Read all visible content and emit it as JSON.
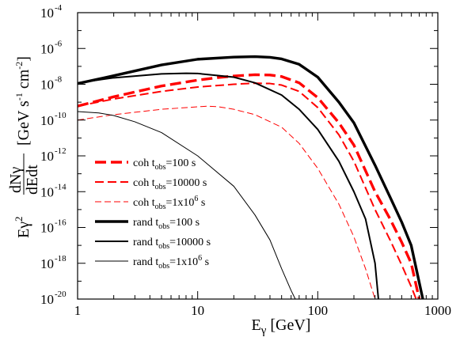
{
  "chart_data": {
    "type": "line",
    "title": "",
    "xlabel": "Eγ [GeV]",
    "ylabel": "Eγ2 dNγ/dEdt [GeV s-1 cm-2]",
    "xscale": "log",
    "yscale": "log",
    "xlim": [
      1,
      1000
    ],
    "ylim": [
      1e-20,
      0.0001
    ],
    "x_ticks": [
      1,
      10,
      100,
      1000
    ],
    "x_tick_labels": [
      "1",
      "10",
      "100",
      "1000"
    ],
    "y_ticks": [
      {
        "value": 1e-20,
        "base": "10",
        "exp": "-20"
      },
      {
        "value": 1e-18,
        "base": "10",
        "exp": "-18"
      },
      {
        "value": 1e-16,
        "base": "10",
        "exp": "-16"
      },
      {
        "value": 1e-14,
        "base": "10",
        "exp": "-14"
      },
      {
        "value": 1e-12,
        "base": "10",
        "exp": "-12"
      },
      {
        "value": 1e-10,
        "base": "10",
        "exp": "-10"
      },
      {
        "value": 1e-08,
        "base": "10",
        "exp": "-8"
      },
      {
        "value": 1e-06,
        "base": "10",
        "exp": "-6"
      },
      {
        "value": 0.0001,
        "base": "10",
        "exp": "-4"
      }
    ],
    "grid": false,
    "legend_position": "lower-left",
    "series": [
      {
        "name": "coh tobs=100 s",
        "legend": {
          "prefix": "coh  t",
          "sub": "obs",
          "mid": "=100 s",
          "sup": "",
          "suffix": ""
        },
        "color": "#ff0000",
        "style": "dashed",
        "width": "thick",
        "x": [
          1,
          2,
          5,
          10,
          15,
          20,
          30,
          40,
          50,
          70,
          100,
          150,
          200,
          300,
          400,
          500,
          600,
          700
        ],
        "y": [
          6e-10,
          2e-09,
          8e-09,
          1.7e-08,
          2.4e-08,
          2.9e-08,
          3.4e-08,
          3.3e-08,
          2.7e-08,
          1.2e-08,
          1.8e-09,
          7e-11,
          4e-12,
          1e-14,
          3e-16,
          1.5e-17,
          1e-18,
          1e-20
        ]
      },
      {
        "name": "coh tobs=10000 s",
        "legend": {
          "prefix": "coh  t",
          "sub": "obs",
          "mid": "=10000 s",
          "sup": "",
          "suffix": ""
        },
        "color": "#ff0000",
        "style": "dashed",
        "width": "medium",
        "x": [
          1,
          2,
          5,
          10,
          20,
          30,
          40,
          50,
          70,
          100,
          150,
          200,
          300,
          400,
          500,
          600,
          660
        ],
        "y": [
          6e-10,
          1.5e-09,
          4e-09,
          7e-09,
          1e-08,
          1.15e-08,
          1.1e-08,
          9e-09,
          4e-09,
          5e-10,
          1.5e-11,
          5e-13,
          1e-15,
          2e-17,
          8e-19,
          5e-20,
          1e-20
        ]
      },
      {
        "name": "coh tobs=1x10^6 s",
        "legend": {
          "prefix": "coh  t",
          "sub": "obs",
          "mid": "=1x10",
          "sup": "6",
          "suffix": " s"
        },
        "color": "#ff0000",
        "style": "dashed",
        "width": "thin",
        "x": [
          1,
          2,
          5,
          10,
          12,
          15,
          20,
          30,
          50,
          70,
          100,
          150,
          200,
          250,
          300,
          330
        ],
        "y": [
          1e-10,
          2e-10,
          4e-10,
          5.5e-10,
          6e-10,
          5.5e-10,
          4e-10,
          2e-10,
          4e-11,
          5e-12,
          2e-13,
          2e-15,
          3e-17,
          5e-19,
          1e-20,
          1e-20
        ]
      },
      {
        "name": "rand tobs=100 s",
        "legend": {
          "prefix": "rand t",
          "sub": "obs",
          "mid": "=100 s",
          "sup": "",
          "suffix": ""
        },
        "color": "#000000",
        "style": "solid",
        "width": "thick",
        "x": [
          1,
          2,
          5,
          10,
          20,
          30,
          40,
          50,
          70,
          100,
          150,
          200,
          300,
          400,
          500,
          600,
          750
        ],
        "y": [
          1.1e-08,
          3e-08,
          1.2e-07,
          2.5e-07,
          3.3e-07,
          3.5e-07,
          3.2e-07,
          2.6e-07,
          1.3e-07,
          2.5e-08,
          1e-09,
          7e-11,
          3e-13,
          5e-15,
          2e-16,
          1e-17,
          1e-20
        ]
      },
      {
        "name": "rand tobs=10000 s",
        "legend": {
          "prefix": "rand t",
          "sub": "obs",
          "mid": "=10000 s",
          "sup": "",
          "suffix": ""
        },
        "color": "#000000",
        "style": "solid",
        "width": "medium",
        "x": [
          1,
          2,
          5,
          8,
          10,
          20,
          30,
          50,
          70,
          100,
          150,
          200,
          250,
          300,
          320
        ],
        "y": [
          1.2e-08,
          2.3e-08,
          3.8e-08,
          4.1e-08,
          4e-08,
          2.5e-08,
          1.2e-08,
          2.5e-09,
          4e-10,
          3e-11,
          5e-13,
          1e-14,
          3e-16,
          1e-18,
          1e-20
        ]
      },
      {
        "name": "rand tobs=1x10^6 s",
        "legend": {
          "prefix": "rand t",
          "sub": "obs",
          "mid": "=1x10",
          "sup": "6",
          "suffix": " s"
        },
        "color": "#000000",
        "style": "solid",
        "width": "thin",
        "x": [
          1,
          1.5,
          2,
          3,
          5,
          10,
          20,
          30,
          40,
          50,
          60,
          65
        ],
        "y": [
          3e-10,
          2.5e-10,
          1.8e-10,
          8e-11,
          2e-11,
          1e-12,
          2e-14,
          5e-16,
          2e-17,
          5e-19,
          3e-20,
          1e-20
        ]
      }
    ]
  }
}
